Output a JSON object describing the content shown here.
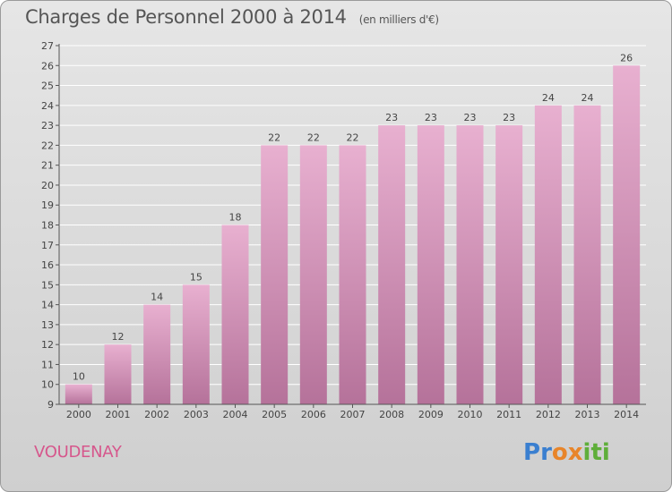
{
  "header": {
    "title": "Charges de Personnel 2000 à 2014",
    "subtitle": "(en milliers d'€)"
  },
  "footer": {
    "commune": "VOUDENAY",
    "logo_letters": [
      "P",
      "r",
      "o",
      "x",
      "i",
      "t",
      "i"
    ],
    "logo_colors": [
      "#3a7fd0",
      "#3a7fd0",
      "#e8852a",
      "#e8852a",
      "#5fae3a",
      "#5fae3a",
      "#5fae3a"
    ]
  },
  "colors": {
    "bar_top": "#e8b0d0",
    "bar_bottom": "#b5729a",
    "grid": "#ffffff",
    "axis": "#555555"
  },
  "chart_data": {
    "type": "bar",
    "title": "Charges de Personnel 2000 à 2014",
    "xlabel": "",
    "ylabel": "",
    "ylim": [
      9,
      27
    ],
    "yticks": [
      9,
      10,
      11,
      12,
      13,
      14,
      15,
      16,
      17,
      18,
      19,
      20,
      21,
      22,
      23,
      24,
      25,
      26,
      27
    ],
    "grid": true,
    "categories": [
      "2000",
      "2001",
      "2002",
      "2003",
      "2004",
      "2005",
      "2006",
      "2007",
      "2008",
      "2009",
      "2010",
      "2011",
      "2012",
      "2013",
      "2014"
    ],
    "values": [
      10,
      12,
      14,
      15,
      18,
      22,
      22,
      22,
      23,
      23,
      23,
      23,
      24,
      24,
      26
    ]
  }
}
